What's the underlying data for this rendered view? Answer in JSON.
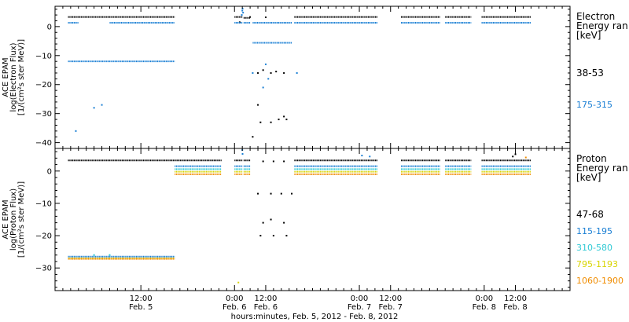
{
  "chart_data": [
    {
      "type": "scatter",
      "ylabel_lines": [
        "ACE EPAM",
        "log(Electron Flux)",
        "[1/(cm²s ster MeV)]"
      ],
      "ylim": [
        -42,
        7
      ],
      "yticks": [
        0,
        -10,
        -20,
        -30,
        -40
      ],
      "legend_title_lines": [
        "Electron",
        "Energy ran",
        "[keV]"
      ],
      "series": [
        {
          "name": "38-53",
          "color": "#000000",
          "segments": [
            [
              -28,
              13,
              3.3
            ],
            [
              36,
              39,
              3.3
            ],
            [
              39.5,
              42,
              3.0
            ],
            [
              59,
              91,
              3.3
            ],
            [
              100,
              115,
              3.3
            ],
            [
              117,
              127,
              3.3
            ],
            [
              131,
              150,
              3.3
            ]
          ],
          "points": [
            [
              45,
              -16
            ],
            [
              47,
              -15
            ],
            [
              50,
              -16
            ],
            [
              52,
              -15.5
            ],
            [
              55,
              -16
            ],
            [
              45,
              -27
            ],
            [
              46,
              -33
            ],
            [
              50,
              -33
            ],
            [
              53,
              -32
            ],
            [
              55,
              -31
            ],
            [
              56,
              -32
            ],
            [
              43,
              -38
            ],
            [
              38,
              1.5
            ],
            [
              48,
              3.2
            ],
            [
              42,
              3.3
            ]
          ]
        },
        {
          "name": "175-315",
          "color": "#1a7fd4",
          "segments": [
            [
              -28,
              -24,
              1.3
            ],
            [
              -12,
              13,
              1.3
            ],
            [
              36,
              39,
              1.3
            ],
            [
              39.5,
              42,
              1.3
            ],
            [
              43,
              58,
              1.3
            ],
            [
              59,
              91,
              1.3
            ],
            [
              100,
              115,
              1.3
            ],
            [
              117,
              127,
              1.3
            ],
            [
              131,
              150,
              1.3
            ],
            [
              -28,
              13,
              -12
            ],
            [
              43,
              58,
              -5.6
            ]
          ],
          "points": [
            [
              39,
              5.5
            ],
            [
              39.3,
              4.8
            ],
            [
              39.1,
              6.2
            ],
            [
              38.8,
              4
            ],
            [
              -18,
              -28
            ],
            [
              -15,
              -27
            ],
            [
              -25,
              -36
            ],
            [
              47,
              -21
            ],
            [
              49,
              -18
            ],
            [
              48,
              -13
            ],
            [
              60,
              -16
            ],
            [
              43,
              -16
            ]
          ]
        }
      ]
    },
    {
      "type": "scatter",
      "ylabel_lines": [
        "ACE EPAM",
        "log(Proton Flux)",
        "[1/(cm²s ster MeV)]"
      ],
      "ylim": [
        -37,
        7
      ],
      "yticks": [
        0,
        -10,
        -20,
        -30
      ],
      "legend_title_lines": [
        "Proton",
        "Energy ran",
        "[keV]"
      ],
      "series": [
        {
          "name": "47-68",
          "color": "#000000",
          "segments": [
            [
              -28,
              31,
              3.3
            ],
            [
              36,
              39,
              3.3
            ],
            [
              39.5,
              42,
              3.3
            ],
            [
              59,
              91,
              3.3
            ],
            [
              100,
              115,
              3.3
            ],
            [
              117,
              127,
              3.3
            ],
            [
              131,
              150,
              3.3
            ]
          ],
          "points": [
            [
              45,
              -7
            ],
            [
              50,
              -7
            ],
            [
              54,
              -7
            ],
            [
              58,
              -7
            ],
            [
              47,
              -16
            ],
            [
              50,
              -15
            ],
            [
              55,
              -16
            ],
            [
              46,
              -20
            ],
            [
              51,
              -20
            ],
            [
              56,
              -20
            ],
            [
              47,
              3
            ],
            [
              51,
              3
            ],
            [
              55,
              3
            ],
            [
              143,
              4.5
            ],
            [
              144,
              5.2
            ]
          ]
        },
        {
          "name": "115-195",
          "color": "#1a7fd4",
          "segments": [
            [
              13,
              31,
              1.5
            ],
            [
              36,
              39,
              1.5
            ],
            [
              39.5,
              42,
              1.5
            ],
            [
              59,
              91,
              1.5
            ],
            [
              100,
              115,
              1.5
            ],
            [
              117,
              127,
              1.5
            ],
            [
              131,
              150,
              1.5
            ],
            [
              -28,
              13,
              -26.5
            ]
          ],
          "points": [
            [
              39,
              6.5
            ],
            [
              39.1,
              5.3
            ],
            [
              85,
              4.8
            ],
            [
              88,
              4.5
            ]
          ]
        },
        {
          "name": "310-580",
          "color": "#2fc9d4",
          "segments": [
            [
              13,
              31,
              0.6
            ],
            [
              36,
              39,
              0.6
            ],
            [
              39.5,
              42,
              0.6
            ],
            [
              59,
              91,
              0.6
            ],
            [
              100,
              115,
              0.6
            ],
            [
              117,
              127,
              0.6
            ],
            [
              131,
              150,
              0.6
            ]
          ],
          "points": [
            [
              -18,
              -26
            ],
            [
              -12,
              -26
            ]
          ]
        },
        {
          "name": "795-1193",
          "color": "#d8d400",
          "segments": [
            [
              13,
              31,
              -0.2
            ],
            [
              36,
              39,
              -0.2
            ],
            [
              39.5,
              42,
              -0.2
            ],
            [
              59,
              91,
              -0.2
            ],
            [
              100,
              115,
              -0.2
            ],
            [
              117,
              127,
              -0.2
            ],
            [
              131,
              150,
              -0.2
            ],
            [
              -28,
              13,
              -27
            ]
          ],
          "points": [
            [
              37.5,
              -34.5
            ]
          ]
        },
        {
          "name": "1060-1900",
          "color": "#f08c00",
          "segments": [
            [
              13,
              31,
              -1.0
            ],
            [
              36,
              39,
              -1.0
            ],
            [
              39.5,
              42,
              -1.0
            ],
            [
              59,
              91,
              -1.0
            ],
            [
              100,
              115,
              -1.0
            ],
            [
              117,
              127,
              -1.0
            ],
            [
              131,
              150,
              -1.0
            ],
            [
              -28,
              13,
              -27.2
            ]
          ],
          "points": [
            [
              148,
              4.2
            ]
          ]
        }
      ]
    }
  ],
  "x_axis": {
    "xlim": [
      -33,
      165
    ],
    "ticks": [
      {
        "hour": 0,
        "time": "12:00",
        "date": "Feb. 5"
      },
      {
        "hour": 36,
        "time": "0:00",
        "date": "Feb. 6"
      },
      {
        "hour": 48,
        "time": "12:00",
        "date": "Feb. 6"
      },
      {
        "hour": 84,
        "time": "0:00",
        "date": "Feb. 7"
      },
      {
        "hour": 96,
        "time": "12:00",
        "date": "Feb. 7"
      },
      {
        "hour": 132,
        "time": "0:00",
        "date": "Feb. 8"
      },
      {
        "hour": 144,
        "time": "12:00",
        "date": "Feb. 8"
      }
    ],
    "minor_every_hours": 3,
    "label": "hours:minutes, Feb.  5, 2012 - Feb.  8, 2012"
  }
}
